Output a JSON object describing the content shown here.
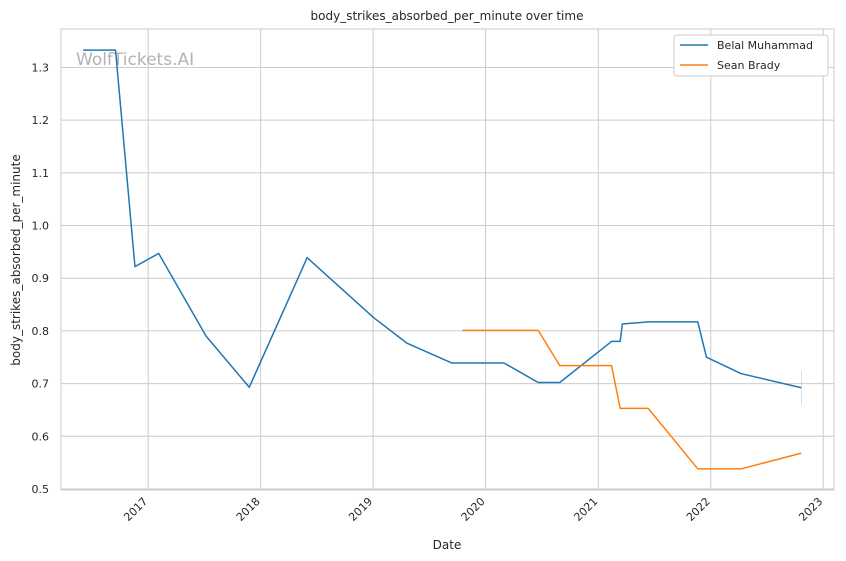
{
  "chart_data": {
    "type": "line",
    "title": "body_strikes_absorbed_per_minute over time",
    "xlabel": "Date",
    "ylabel": "body_strikes_absorbed_per_minute",
    "watermark": "WolfTickets.AI",
    "x_tick_labels": [
      "2017",
      "2018",
      "2019",
      "2020",
      "2021",
      "2022",
      "2023"
    ],
    "y_tick_labels": [
      "0.5",
      "0.6",
      "0.7",
      "0.8",
      "0.9",
      "1.0",
      "1.1",
      "1.2",
      "1.3"
    ],
    "xlim": [
      "2016-03-24",
      "2023-02-05"
    ],
    "ylim": [
      0.498,
      1.373
    ],
    "grid": true,
    "legend_position": "top-right",
    "series": [
      {
        "name": "Belal Muhammad",
        "color": "#1f77b4",
        "points": [
          [
            "2016-06-04",
            1.333
          ],
          [
            "2016-09-17",
            1.333
          ],
          [
            "2016-11-19",
            0.922
          ],
          [
            "2017-02-04",
            0.947
          ],
          [
            "2017-07-08",
            0.79
          ],
          [
            "2017-11-25",
            0.693
          ],
          [
            "2018-06-01",
            0.939
          ],
          [
            "2019-01-01",
            0.826
          ],
          [
            "2019-04-20",
            0.777
          ],
          [
            "2019-09-14",
            0.739
          ],
          [
            "2020-03-01",
            0.739
          ],
          [
            "2020-06-20",
            0.702
          ],
          [
            "2020-08-29",
            0.702
          ],
          [
            "2021-02-13",
            0.78
          ],
          [
            "2021-03-13",
            0.78
          ],
          [
            "2021-03-20",
            0.813
          ],
          [
            "2021-06-12",
            0.817
          ],
          [
            "2021-11-20",
            0.817
          ],
          [
            "2021-12-18",
            0.75
          ],
          [
            "2022-04-09",
            0.719
          ],
          [
            "2022-10-22",
            0.692
          ]
        ]
      },
      {
        "name": "Sean Brady",
        "color": "#ff7f0e",
        "points": [
          [
            "2019-10-18",
            0.801
          ],
          [
            "2020-06-20",
            0.801
          ],
          [
            "2020-08-29",
            0.734
          ],
          [
            "2021-02-13",
            0.734
          ],
          [
            "2021-03-13",
            0.653
          ],
          [
            "2021-06-12",
            0.653
          ],
          [
            "2021-11-20",
            0.538
          ],
          [
            "2022-04-09",
            0.538
          ],
          [
            "2022-10-22",
            0.568
          ]
        ]
      }
    ]
  }
}
